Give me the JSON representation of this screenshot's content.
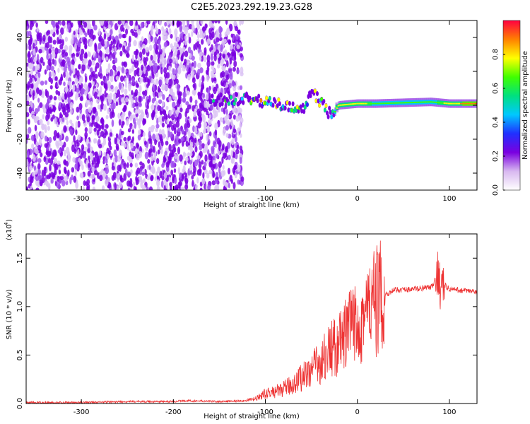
{
  "title": "C2E5.2023.292.19.23.G28",
  "chart_data": [
    {
      "type": "heatmap",
      "xlabel": "Height of straight line (km)",
      "ylabel": "Frequency (Hz)",
      "xlim": [
        -360,
        130
      ],
      "ylim": [
        -50,
        50
      ],
      "x_ticks": [
        -300,
        -200,
        -100,
        0,
        100
      ],
      "y_ticks": [
        -40,
        -20,
        0,
        20,
        40
      ],
      "x_tick_labels": [
        "-300",
        "-200",
        "-100",
        "0",
        "100"
      ],
      "y_tick_labels": [
        "-40",
        "-20",
        "0",
        "20",
        "40"
      ],
      "colorbar": {
        "label": "Normalized spectral amplitude",
        "range": [
          0,
          1
        ],
        "ticks": [
          0.0,
          0.2,
          0.4,
          0.6,
          0.8
        ],
        "tick_labels": [
          "0.0",
          "0.2",
          "0.4",
          "0.6",
          "0.8"
        ],
        "colormap": [
          "#ffffff",
          "#d8b8f0",
          "#7a00e0",
          "#2030ff",
          "#00c8ff",
          "#00e080",
          "#40ff00",
          "#ffff00",
          "#ff8000",
          "#ff0040"
        ]
      },
      "signal_track": [
        {
          "x": -150,
          "f": 3,
          "amp": 0.25
        },
        {
          "x": -120,
          "f": 4,
          "amp": 0.45
        },
        {
          "x": -100,
          "f": 2,
          "amp": 0.5
        },
        {
          "x": -80,
          "f": 0,
          "amp": 0.5
        },
        {
          "x": -60,
          "f": -3,
          "amp": 0.5
        },
        {
          "x": -50,
          "f": 8,
          "amp": 0.4
        },
        {
          "x": -40,
          "f": 2,
          "amp": 0.55
        },
        {
          "x": -30,
          "f": -5,
          "amp": 0.4
        },
        {
          "x": -20,
          "f": 0,
          "amp": 0.75
        },
        {
          "x": 0,
          "f": 1,
          "amp": 0.75
        },
        {
          "x": 20,
          "f": 1,
          "amp": 0.6
        },
        {
          "x": 80,
          "f": 2,
          "amp": 0.6
        },
        {
          "x": 100,
          "f": 1,
          "amp": 0.7
        },
        {
          "x": 130,
          "f": 1,
          "amp": 0.9
        }
      ]
    },
    {
      "type": "line",
      "xlabel": "Height of straight line (km)",
      "ylabel": "SNR (10 * v/v)",
      "y_multiplier": "(x10",
      "y_multiplier_exp": "4",
      "xlim": [
        -360,
        130
      ],
      "ylim": [
        0,
        1.75
      ],
      "x_ticks": [
        -300,
        -200,
        -100,
        0,
        100
      ],
      "y_ticks": [
        0.0,
        0.5,
        1.0,
        1.5
      ],
      "x_tick_labels": [
        "-300",
        "-200",
        "-100",
        "0",
        "100"
      ],
      "y_tick_labels": [
        "0.0",
        "0.5",
        "1.0",
        "1.5"
      ],
      "series": [
        {
          "color": "#ee3333",
          "x": [
            -360,
            -300,
            -250,
            -200,
            -190,
            -150,
            -120,
            -110,
            -100,
            -90,
            -80,
            -70,
            -60,
            -50,
            -40,
            -30,
            -20,
            -10,
            0,
            10,
            20,
            30,
            40,
            60,
            80,
            85,
            88,
            90,
            95,
            100,
            110,
            120,
            130
          ],
          "y": [
            0.01,
            0.01,
            0.02,
            0.02,
            0.03,
            0.02,
            0.03,
            0.05,
            0.1,
            0.12,
            0.15,
            0.2,
            0.28,
            0.35,
            0.42,
            0.55,
            0.6,
            0.75,
            0.85,
            0.95,
            1.05,
            1.12,
            1.17,
            1.18,
            1.2,
            1.25,
            1.4,
            1.2,
            1.22,
            1.18,
            1.17,
            1.16,
            1.15
          ]
        }
      ]
    }
  ]
}
